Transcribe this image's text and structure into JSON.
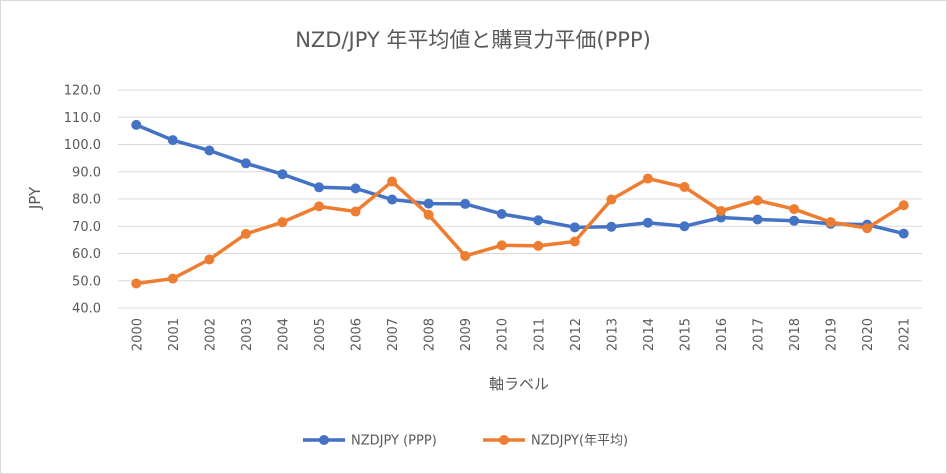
{
  "chart_data": {
    "type": "line",
    "title": "NZD/JPY 年平均値と購買力平価(PPP)",
    "xlabel": "軸ラベル",
    "ylabel": "JPY",
    "ylim": [
      40,
      120
    ],
    "yticks": [
      "40.0",
      "50.0",
      "60.0",
      "70.0",
      "80.0",
      "90.0",
      "100.0",
      "110.0",
      "120.0"
    ],
    "categories": [
      "2000",
      "2001",
      "2002",
      "2003",
      "2004",
      "2005",
      "2006",
      "2007",
      "2008",
      "2009",
      "2010",
      "2011",
      "2012",
      "2013",
      "2014",
      "2015",
      "2016",
      "2017",
      "2018",
      "2019",
      "2020",
      "2021"
    ],
    "grid": true,
    "legend_position": "bottom",
    "series": [
      {
        "name": "NZDJPY (PPP)",
        "color": "#4472c4",
        "values": [
          107.2,
          101.6,
          97.8,
          93.1,
          89.1,
          84.3,
          83.9,
          79.8,
          78.3,
          78.2,
          74.5,
          72.2,
          69.6,
          69.8,
          71.3,
          70.0,
          73.2,
          72.5,
          72.0,
          70.9,
          70.6,
          67.3
        ]
      },
      {
        "name": "NZDJPY(年平均)",
        "color": "#ed7d31",
        "values": [
          49.0,
          50.8,
          57.8,
          67.2,
          71.5,
          77.3,
          75.4,
          86.4,
          74.2,
          59.1,
          63.0,
          62.8,
          64.4,
          79.8,
          87.5,
          84.4,
          75.6,
          79.5,
          76.3,
          71.5,
          69.3,
          77.7
        ]
      }
    ]
  }
}
